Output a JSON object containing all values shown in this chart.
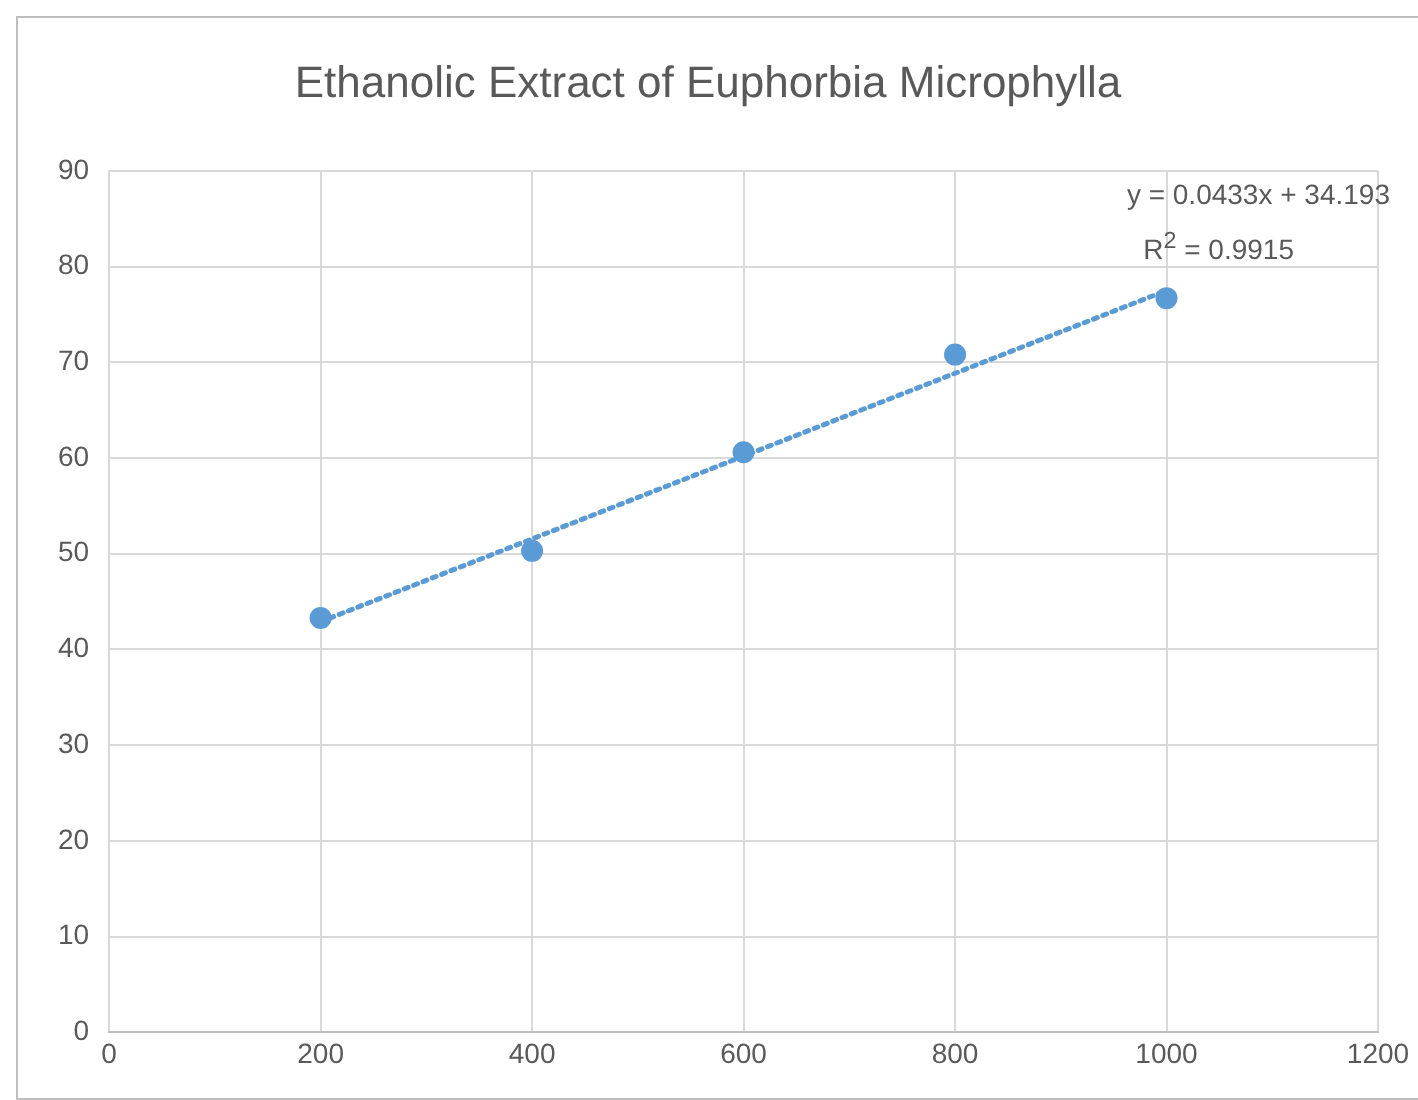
{
  "chart_data": {
    "type": "scatter",
    "title": "Ethanolic Extract of Euphorbia Microphylla",
    "series": [
      {
        "color": "#5b9bd5",
        "x": [
          200,
          400,
          600,
          800,
          1000
        ],
        "values": [
          43.3,
          50.3,
          60.6,
          70.8,
          76.7
        ],
        "marker": "circle"
      },
      {
        "type": "line",
        "color": "#5b9bd5",
        "x": [
          200,
          1000
        ],
        "values": [
          42.9,
          77.5
        ],
        "line_style": "dotted",
        "marker": "none"
      }
    ],
    "annotations": [
      "y = 0.0433x + 34.193",
      "R$^{2}$ = 0.9915"
    ],
    "xlim": [
      0,
      1200
    ],
    "xticks": [
      0,
      200,
      400,
      600,
      800,
      1000,
      1200
    ],
    "ylim": [
      0,
      90
    ],
    "yticks": [
      0,
      10,
      20,
      30,
      40,
      50,
      60,
      70,
      80,
      90
    ],
    "grid": true,
    "legend": false
  }
}
